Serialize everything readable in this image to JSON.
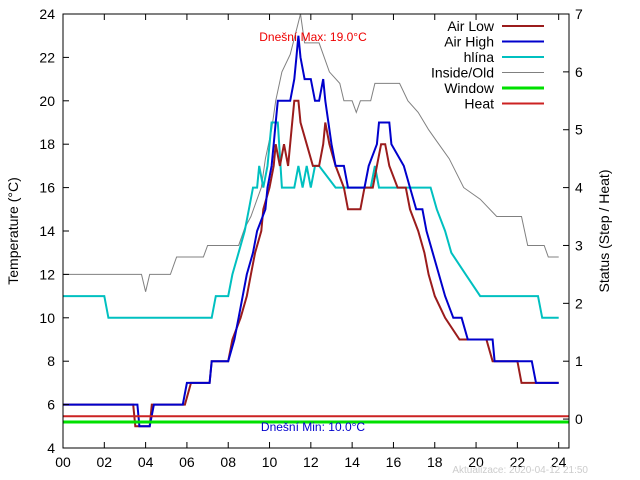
{
  "chart_data": {
    "type": "line",
    "ylabel": "Temperature (°C)",
    "y2label": "Status (Step / Heat)",
    "xlim": [
      0,
      24.5
    ],
    "ylim": [
      4,
      24
    ],
    "y2lim": [
      -0.5,
      7
    ],
    "xticks": [
      0,
      2,
      4,
      6,
      8,
      10,
      12,
      14,
      16,
      18,
      20,
      22,
      24
    ],
    "xtick_labels": [
      "00",
      "02",
      "04",
      "06",
      "08",
      "10",
      "12",
      "14",
      "16",
      "18",
      "20",
      "22",
      "24"
    ],
    "yticks": [
      4,
      6,
      8,
      10,
      12,
      14,
      16,
      18,
      20,
      22,
      24
    ],
    "ytick_labels": [
      "4",
      "6",
      "8",
      "10",
      "12",
      "14",
      "16",
      "18",
      "20",
      "22",
      "24"
    ],
    "y2ticks": [
      0,
      1,
      2,
      3,
      4,
      5,
      6,
      7
    ],
    "y2tick_labels": [
      "0",
      "1",
      "2",
      "3",
      "4",
      "5",
      "6",
      "7"
    ],
    "grid": false,
    "legend_position": "top-right",
    "series": [
      {
        "name": "Air Low",
        "color": "#9b1c1c",
        "axis": "left",
        "points": [
          [
            0,
            6
          ],
          [
            3.4,
            6
          ],
          [
            3.5,
            5
          ],
          [
            4.2,
            5
          ],
          [
            4.3,
            6
          ],
          [
            5.9,
            6
          ],
          [
            6.2,
            7
          ],
          [
            7.1,
            7
          ],
          [
            7.2,
            8
          ],
          [
            8,
            8
          ],
          [
            8.2,
            9
          ],
          [
            8.6,
            10
          ],
          [
            8.9,
            11
          ],
          [
            9.1,
            12
          ],
          [
            9.3,
            13
          ],
          [
            9.6,
            14
          ],
          [
            9.7,
            15
          ],
          [
            10,
            16
          ],
          [
            10.2,
            17
          ],
          [
            10.3,
            18
          ],
          [
            10.5,
            17
          ],
          [
            10.7,
            18
          ],
          [
            10.9,
            17
          ],
          [
            11.1,
            19
          ],
          [
            11.2,
            20
          ],
          [
            11.4,
            20
          ],
          [
            11.5,
            19
          ],
          [
            11.8,
            18
          ],
          [
            12.1,
            17
          ],
          [
            12.4,
            17
          ],
          [
            12.6,
            18
          ],
          [
            12.7,
            19
          ],
          [
            12.9,
            18
          ],
          [
            13.2,
            17
          ],
          [
            13.6,
            16
          ],
          [
            13.8,
            15
          ],
          [
            14.4,
            15
          ],
          [
            14.6,
            16
          ],
          [
            15,
            16
          ],
          [
            15.2,
            17
          ],
          [
            15.4,
            18
          ],
          [
            15.6,
            18
          ],
          [
            15.8,
            17
          ],
          [
            16.2,
            16
          ],
          [
            16.6,
            16
          ],
          [
            16.8,
            15
          ],
          [
            17.2,
            14
          ],
          [
            17.5,
            13
          ],
          [
            17.7,
            12
          ],
          [
            18,
            11
          ],
          [
            18.5,
            10
          ],
          [
            19.2,
            9
          ],
          [
            20.5,
            9
          ],
          [
            20.8,
            8
          ],
          [
            22,
            8
          ],
          [
            22.2,
            7
          ],
          [
            24,
            7
          ]
        ]
      },
      {
        "name": "Air High",
        "color": "#0000cc",
        "axis": "left",
        "points": [
          [
            0,
            6
          ],
          [
            3.6,
            6
          ],
          [
            3.7,
            5
          ],
          [
            4.2,
            5
          ],
          [
            4.4,
            6
          ],
          [
            5.8,
            6
          ],
          [
            6,
            7
          ],
          [
            7.1,
            7
          ],
          [
            7.2,
            8
          ],
          [
            8,
            8
          ],
          [
            8.3,
            9
          ],
          [
            8.5,
            10
          ],
          [
            8.7,
            11
          ],
          [
            8.9,
            12
          ],
          [
            9.2,
            13
          ],
          [
            9.4,
            14
          ],
          [
            9.8,
            15
          ],
          [
            9.9,
            16
          ],
          [
            10.1,
            17
          ],
          [
            10.2,
            18
          ],
          [
            10.3,
            19
          ],
          [
            10.4,
            20
          ],
          [
            11,
            20
          ],
          [
            11.2,
            21
          ],
          [
            11.3,
            22
          ],
          [
            11.4,
            23
          ],
          [
            11.5,
            22
          ],
          [
            11.7,
            21
          ],
          [
            12,
            21
          ],
          [
            12.2,
            20
          ],
          [
            12.4,
            20
          ],
          [
            12.6,
            21
          ],
          [
            12.7,
            20
          ],
          [
            13,
            18
          ],
          [
            13.2,
            17
          ],
          [
            13.6,
            17
          ],
          [
            13.8,
            16
          ],
          [
            14.2,
            16
          ],
          [
            14.6,
            16
          ],
          [
            14.8,
            17
          ],
          [
            15.2,
            18
          ],
          [
            15.3,
            19
          ],
          [
            15.8,
            19
          ],
          [
            15.9,
            18
          ],
          [
            16.5,
            17
          ],
          [
            16.8,
            16
          ],
          [
            17.1,
            15
          ],
          [
            17.4,
            15
          ],
          [
            17.6,
            14
          ],
          [
            17.9,
            13
          ],
          [
            18.2,
            12
          ],
          [
            18.5,
            11
          ],
          [
            18.9,
            10
          ],
          [
            19.3,
            10
          ],
          [
            19.6,
            9
          ],
          [
            20.8,
            9
          ],
          [
            20.9,
            8
          ],
          [
            22.7,
            8
          ],
          [
            22.9,
            7
          ],
          [
            24,
            7
          ]
        ]
      },
      {
        "name": "hlína",
        "color": "#00c0c0",
        "axis": "left",
        "points": [
          [
            0,
            11
          ],
          [
            2,
            11
          ],
          [
            2.2,
            10
          ],
          [
            7.2,
            10
          ],
          [
            7.4,
            11
          ],
          [
            8,
            11
          ],
          [
            8.2,
            12
          ],
          [
            8.5,
            13
          ],
          [
            8.8,
            14
          ],
          [
            9,
            15
          ],
          [
            9.2,
            16
          ],
          [
            9.4,
            16
          ],
          [
            9.5,
            17
          ],
          [
            9.7,
            16
          ],
          [
            9.9,
            17
          ],
          [
            10.1,
            19
          ],
          [
            10.4,
            19
          ],
          [
            10.6,
            16
          ],
          [
            11.2,
            16
          ],
          [
            11.4,
            17
          ],
          [
            11.6,
            16
          ],
          [
            11.8,
            17
          ],
          [
            12,
            16
          ],
          [
            12.2,
            17
          ],
          [
            12.4,
            17
          ],
          [
            13.2,
            16
          ],
          [
            14.9,
            16
          ],
          [
            15.1,
            17
          ],
          [
            15.3,
            16
          ],
          [
            17.8,
            16
          ],
          [
            18.1,
            15
          ],
          [
            18.5,
            14
          ],
          [
            18.8,
            13
          ],
          [
            19.5,
            12
          ],
          [
            20.2,
            11
          ],
          [
            22.2,
            11
          ],
          [
            23,
            11
          ],
          [
            23.2,
            10
          ],
          [
            24,
            10
          ]
        ]
      },
      {
        "name": "Inside/Old",
        "color": "#808080",
        "axis": "right",
        "points": [
          [
            0,
            2.5
          ],
          [
            3.8,
            2.5
          ],
          [
            4,
            2.2
          ],
          [
            4.2,
            2.5
          ],
          [
            5.2,
            2.5
          ],
          [
            5.5,
            2.8
          ],
          [
            6.8,
            2.8
          ],
          [
            7,
            3
          ],
          [
            8.5,
            3
          ],
          [
            8.8,
            3.3
          ],
          [
            9.1,
            3.5
          ],
          [
            9.4,
            3.8
          ],
          [
            9.6,
            4
          ],
          [
            9.8,
            4.5
          ],
          [
            10.1,
            5
          ],
          [
            10.3,
            5.5
          ],
          [
            10.6,
            6
          ],
          [
            11,
            6.3
          ],
          [
            11.5,
            7
          ],
          [
            11.7,
            6.5
          ],
          [
            12.4,
            6.5
          ],
          [
            12.9,
            6
          ],
          [
            13.4,
            5.8
          ],
          [
            13.6,
            5.5
          ],
          [
            14,
            5.5
          ],
          [
            14.2,
            5.3
          ],
          [
            14.4,
            5.5
          ],
          [
            14.9,
            5.5
          ],
          [
            15.1,
            5.8
          ],
          [
            16.3,
            5.8
          ],
          [
            16.7,
            5.5
          ],
          [
            17.2,
            5.3
          ],
          [
            17.7,
            5
          ],
          [
            18.1,
            4.8
          ],
          [
            18.7,
            4.5
          ],
          [
            19.4,
            4
          ],
          [
            20.2,
            3.8
          ],
          [
            21,
            3.5
          ],
          [
            22.2,
            3.5
          ],
          [
            22.5,
            3
          ],
          [
            23.3,
            3
          ],
          [
            23.5,
            2.8
          ],
          [
            24,
            2.8
          ]
        ]
      },
      {
        "name": "Window",
        "color": "#00e000",
        "axis": "right",
        "points": [
          [
            0,
            -0.05
          ],
          [
            24.5,
            -0.05
          ]
        ]
      },
      {
        "name": "Heat",
        "color": "#cc2222",
        "axis": "right",
        "points": [
          [
            0,
            0.05
          ],
          [
            24.5,
            0.05
          ]
        ]
      }
    ],
    "annotations": {
      "max_label": "Dnešní Max: 19.0°C",
      "min_label": "Dnešní Min: 10.0°C",
      "updated": "Aktualizace: 2020-04-12 21:50"
    }
  }
}
